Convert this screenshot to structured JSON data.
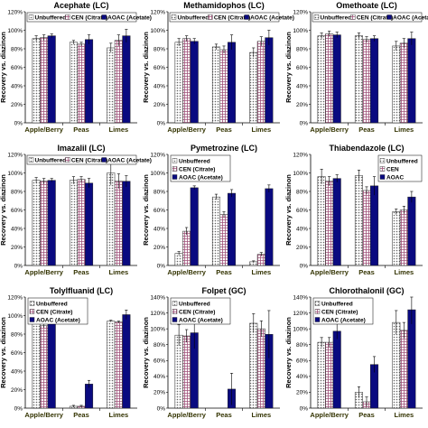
{
  "patterns": {
    "Unbuffered": {
      "kind": "dots",
      "fg": "#666666"
    },
    "CEN (Citrate)": {
      "kind": "grid",
      "fg": "#a0527a"
    },
    "CEN": {
      "kind": "grid",
      "fg": "#a0527a"
    },
    "AOAC (Acetate)": {
      "kind": "solid",
      "fg": "#0a0a80"
    },
    "AOAC": {
      "kind": "solid",
      "fg": "#0a0a80"
    }
  },
  "chart_data": [
    {
      "type": "bar",
      "title": "Acephate (LC)",
      "ylabel": "Recovery vs. diazinon",
      "ylim": [
        0,
        120
      ],
      "yticks": [
        "0%",
        "20%",
        "40%",
        "60%",
        "80%",
        "100%",
        "120%"
      ],
      "categories": [
        "Apple/Berry",
        "Peas",
        "Limes"
      ],
      "legend": {
        "layout": "horizontal",
        "position": "top"
      },
      "series": [
        {
          "name": "Unbuffered",
          "values": [
            91,
            87,
            81
          ],
          "errors": [
            3,
            2,
            5
          ]
        },
        {
          "name": "CEN (Citrate)",
          "values": [
            92,
            85,
            89
          ],
          "errors": [
            3,
            2,
            6
          ]
        },
        {
          "name": "AOAC (Acetate)",
          "values": [
            94,
            90,
            94
          ],
          "errors": [
            2,
            5,
            7
          ]
        }
      ]
    },
    {
      "type": "bar",
      "title": "Methamidophos (LC)",
      "ylabel": "Recovery vs. diazinon",
      "ylim": [
        0,
        120
      ],
      "yticks": [
        "0%",
        "20%",
        "40%",
        "60%",
        "80%",
        "100%",
        "120%"
      ],
      "categories": [
        "Apple/Berry",
        "Peas",
        "Limes"
      ],
      "legend": {
        "layout": "horizontal",
        "position": "top"
      },
      "series": [
        {
          "name": "Unbuffered",
          "values": [
            87,
            82,
            76
          ],
          "errors": [
            4,
            3,
            5
          ]
        },
        {
          "name": "CEN (Citrate)",
          "values": [
            91,
            79,
            88
          ],
          "errors": [
            3,
            4,
            5
          ]
        },
        {
          "name": "AOAC (Acetate)",
          "values": [
            88,
            87,
            92
          ],
          "errors": [
            3,
            8,
            8
          ]
        }
      ]
    },
    {
      "type": "bar",
      "title": "Omethoate (LC)",
      "ylabel": "Recovery vs. diazinon",
      "ylim": [
        0,
        120
      ],
      "yticks": [
        "0%",
        "20%",
        "40%",
        "60%",
        "80%",
        "100%",
        "120%"
      ],
      "categories": [
        "Apple/Berry",
        "Peas",
        "Limes"
      ],
      "legend": {
        "layout": "horizontal",
        "position": "top"
      },
      "series": [
        {
          "name": "Unbuffered",
          "values": [
            94,
            94,
            83
          ],
          "errors": [
            3,
            3,
            5
          ]
        },
        {
          "name": "CEN (Citrate)",
          "values": [
            96,
            90,
            86
          ],
          "errors": [
            3,
            3,
            5
          ]
        },
        {
          "name": "AOAC (Acetate)",
          "values": [
            95,
            91,
            91
          ],
          "errors": [
            3,
            3,
            7
          ]
        }
      ]
    },
    {
      "type": "bar",
      "title": "Imazalil (LC)",
      "ylabel": "Recovery vs. diazinon",
      "ylim": [
        0,
        120
      ],
      "yticks": [
        "0%",
        "20%",
        "40%",
        "60%",
        "80%",
        "100%",
        "120%"
      ],
      "categories": [
        "Apple/Berry",
        "Peas",
        "Limes"
      ],
      "legend": {
        "layout": "horizontal",
        "position": "top"
      },
      "series": [
        {
          "name": "Unbuffered",
          "values": [
            92,
            92,
            100
          ],
          "errors": [
            3,
            4,
            13
          ]
        },
        {
          "name": "CEN (Citrate)",
          "values": [
            91,
            93,
            91
          ],
          "errors": [
            3,
            3,
            8
          ]
        },
        {
          "name": "AOAC (Acetate)",
          "values": [
            92,
            89,
            91
          ],
          "errors": [
            2,
            5,
            6
          ]
        }
      ]
    },
    {
      "type": "bar",
      "title": "Pymetrozine (LC)",
      "ylabel": "Recovery vs. diazinon",
      "ylim": [
        0,
        120
      ],
      "yticks": [
        "0%",
        "20%",
        "40%",
        "60%",
        "80%",
        "100%",
        "120%"
      ],
      "categories": [
        "Apple/Berry",
        "Peas",
        "Limes"
      ],
      "legend": {
        "layout": "vertical",
        "position": "top-left"
      },
      "series": [
        {
          "name": "Unbuffered",
          "values": [
            13,
            74,
            4
          ],
          "errors": [
            2,
            3,
            1
          ]
        },
        {
          "name": "CEN (Citrate)",
          "values": [
            37,
            55,
            12
          ],
          "errors": [
            4,
            3,
            2
          ]
        },
        {
          "name": "AOAC (Acetate)",
          "values": [
            84,
            78,
            83
          ],
          "errors": [
            2,
            4,
            4
          ]
        }
      ]
    },
    {
      "type": "bar",
      "title": "Thiabendazole (LC)",
      "ylabel": "Recovery vs. diazinon",
      "ylim": [
        0,
        120
      ],
      "yticks": [
        "0%",
        "20%",
        "40%",
        "60%",
        "80%",
        "100%",
        "120%"
      ],
      "categories": [
        "Apple/Berry",
        "Peas",
        "Limes"
      ],
      "legend": {
        "layout": "vertical",
        "position": "top-right"
      },
      "series": [
        {
          "name": "Unbuffered",
          "values": [
            96,
            97,
            58
          ],
          "errors": [
            8,
            6,
            3
          ]
        },
        {
          "name": "CEN",
          "values": [
            91,
            81,
            60
          ],
          "errors": [
            5,
            4,
            4
          ]
        },
        {
          "name": "AOAC",
          "values": [
            94,
            86,
            74
          ],
          "errors": [
            4,
            10,
            6
          ]
        }
      ]
    },
    {
      "type": "bar",
      "title": "Tolylfluanid (LC)",
      "ylabel": "Recovery vs. diazinon",
      "ylim": [
        0,
        120
      ],
      "yticks": [
        "0%",
        "20%",
        "40%",
        "60%",
        "80%",
        "100%",
        "120%"
      ],
      "categories": [
        "Apple/Berry",
        "Peas",
        "Limes"
      ],
      "legend": {
        "layout": "vertical",
        "position": "top-left"
      },
      "series": [
        {
          "name": "Unbuffered",
          "values": [
            93,
            2,
            94
          ],
          "errors": [
            2,
            1,
            1
          ]
        },
        {
          "name": "CEN (Citrate)",
          "values": [
            89,
            2,
            93
          ],
          "errors": [
            2,
            1,
            1
          ]
        },
        {
          "name": "AOAC (Acetate)",
          "values": [
            103,
            26,
            101
          ],
          "errors": [
            3,
            4,
            5
          ]
        }
      ]
    },
    {
      "type": "bar",
      "title": "Folpet (GC)",
      "ylabel": "Recovery vs. diazinon",
      "ylim": [
        0,
        140
      ],
      "yticks": [
        "0%",
        "20%",
        "40%",
        "60%",
        "80%",
        "100%",
        "120%",
        "140%"
      ],
      "categories": [
        "Apple/Berry",
        "Peas",
        "Limes"
      ],
      "legend": {
        "layout": "vertical",
        "position": "top-left"
      },
      "series": [
        {
          "name": "Unbuffered",
          "values": [
            92,
            0,
            107
          ],
          "errors": [
            13,
            0,
            12
          ]
        },
        {
          "name": "CEN (Citrate)",
          "values": [
            91,
            0,
            100
          ],
          "errors": [
            8,
            0,
            10
          ]
        },
        {
          "name": "AOAC (Acetate)",
          "values": [
            95,
            24,
            93
          ],
          "errors": [
            20,
            20,
            30
          ]
        }
      ]
    },
    {
      "type": "bar",
      "title": "Chlorothalonil (GC)",
      "ylabel": "Recovery vs. diazinon",
      "ylim": [
        0,
        140
      ],
      "yticks": [
        "0%",
        "20%",
        "40%",
        "60%",
        "80%",
        "100%",
        "120%",
        "140%"
      ],
      "categories": [
        "Apple/Berry",
        "Peas",
        "Limes"
      ],
      "legend": {
        "layout": "vertical",
        "position": "top-left"
      },
      "series": [
        {
          "name": "Unbuffered",
          "values": [
            83,
            20,
            108
          ],
          "errors": [
            6,
            7,
            15
          ]
        },
        {
          "name": "CEN (Citrate)",
          "values": [
            83,
            8,
            98
          ],
          "errors": [
            6,
            6,
            10
          ]
        },
        {
          "name": "AOAC (Acetate)",
          "values": [
            97,
            55,
            124
          ],
          "errors": [
            10,
            10,
            18
          ]
        }
      ]
    }
  ]
}
